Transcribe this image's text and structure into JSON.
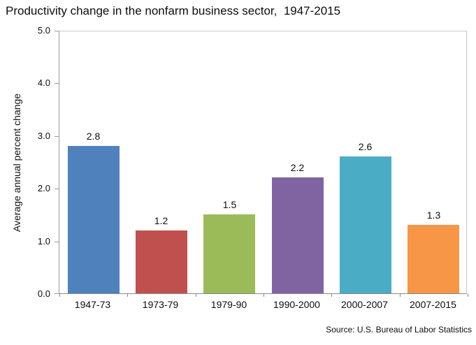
{
  "title": "Productivity change in the nonfarm business sector,  1947-2015",
  "source_note": "Source: U.S. Bureau of Labor Statistics",
  "chart_data": {
    "type": "bar",
    "title": "Productivity change in the nonfarm business sector,  1947-2015",
    "categories": [
      "1947-73",
      "1973-79",
      "1979-90",
      "1990-2000",
      "2000-2007",
      "2007-2015"
    ],
    "values": [
      2.8,
      1.2,
      1.5,
      2.2,
      2.6,
      1.3
    ],
    "data_labels": [
      "2.8",
      "1.2",
      "1.5",
      "2.2",
      "2.6",
      "1.3"
    ],
    "bar_colors": [
      "#4F81BD",
      "#C0504D",
      "#9BBB59",
      "#8064A2",
      "#4BACC6",
      "#F79646"
    ],
    "xlabel": "",
    "ylabel": "Average annual percent change",
    "ylim": [
      0.0,
      5.0
    ],
    "ytick_labels": [
      "0.0",
      "1.0",
      "2.0",
      "3.0",
      "4.0",
      "5.0"
    ],
    "grid": false,
    "legend": "none",
    "source": "Source: U.S. Bureau of Labor Statistics"
  }
}
